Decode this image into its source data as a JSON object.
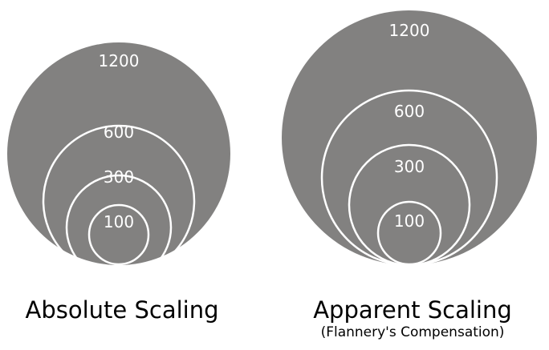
{
  "colors": {
    "circle_fill": "#828180",
    "ring_stroke": "#ffffff",
    "caption_text": "#000000",
    "background": "#ffffff"
  },
  "absolute": {
    "title": "Absolute Scaling",
    "rings": [
      {
        "value": 1200,
        "label": "1200"
      },
      {
        "value": 600,
        "label": "600"
      },
      {
        "value": 300,
        "label": "300"
      },
      {
        "value": 100,
        "label": "100"
      }
    ]
  },
  "apparent": {
    "title": "Apparent Scaling",
    "subtitle": "(Flannery's Compensation)",
    "rings": [
      {
        "value": 1200,
        "label": "1200"
      },
      {
        "value": 600,
        "label": "600"
      },
      {
        "value": 300,
        "label": "300"
      },
      {
        "value": 100,
        "label": "100"
      }
    ]
  }
}
